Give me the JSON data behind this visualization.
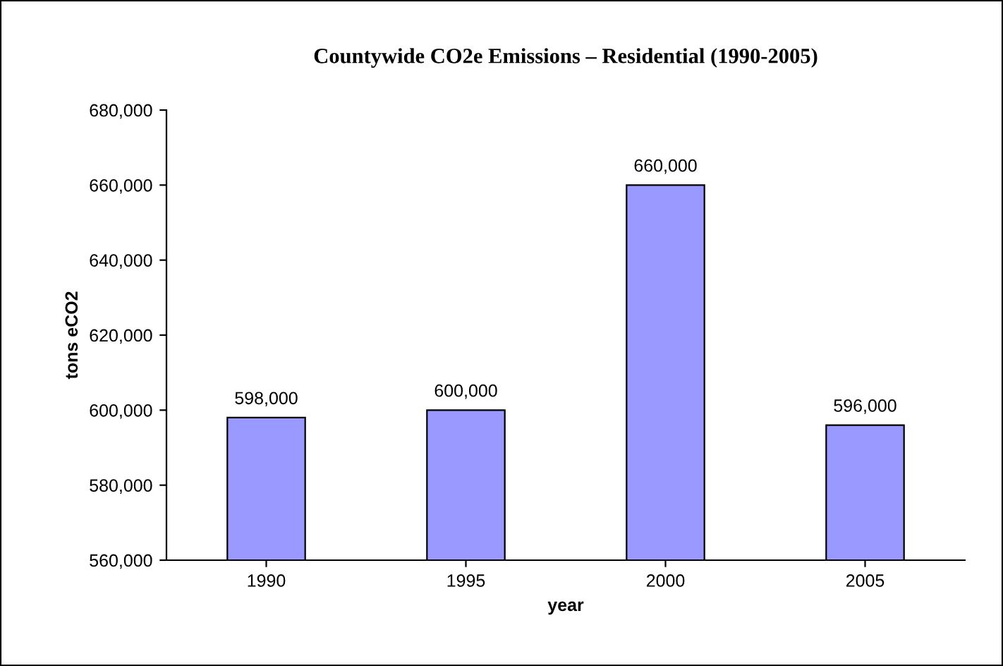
{
  "chart_data": {
    "type": "bar",
    "title": "Countywide CO2e Emissions – Residential (1990-2005)",
    "xlabel": "year",
    "ylabel": "tons eCO2",
    "categories": [
      "1990",
      "1995",
      "2000",
      "2005"
    ],
    "values": [
      598000,
      600000,
      660000,
      596000
    ],
    "color": "#9999ff",
    "value_labels": [
      "598,000",
      "600,000",
      "660,000",
      "596,000"
    ],
    "ylim": [
      560000,
      680000
    ],
    "yticks": [
      {
        "value": 560000,
        "label": "560,000"
      },
      {
        "value": 580000,
        "label": "580,000"
      },
      {
        "value": 600000,
        "label": "600,000"
      },
      {
        "value": 620000,
        "label": "620,000"
      },
      {
        "value": 640000,
        "label": "640,000"
      },
      {
        "value": 660000,
        "label": "660,000"
      },
      {
        "value": 680000,
        "label": "680,000"
      }
    ],
    "grid": false,
    "legend": false
  }
}
